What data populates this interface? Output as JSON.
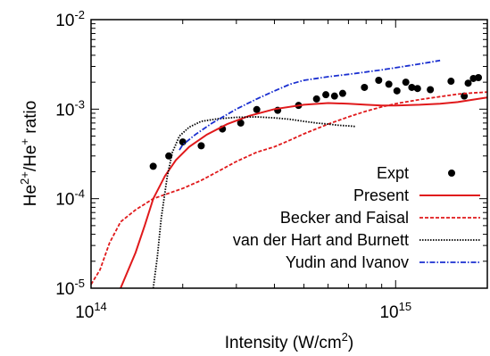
{
  "chart_data": {
    "type": "line",
    "xlabel": "Intensity (W/cm²)",
    "ylabel": "He²⁺/He⁺ ratio",
    "xscale": "log",
    "yscale": "log",
    "xlim": [
      100000000000000.0,
      2000000000000000.0
    ],
    "ylim": [
      1e-05,
      0.01
    ],
    "x_ticks": [
      {
        "value": 100000000000000.0,
        "base": "10",
        "exp": "14"
      },
      {
        "value": 1000000000000000.0,
        "base": "10",
        "exp": "15"
      }
    ],
    "y_ticks": [
      {
        "value": 1e-05,
        "base": "10",
        "exp": "-5"
      },
      {
        "value": 0.0001,
        "base": "10",
        "exp": "-4"
      },
      {
        "value": 0.001,
        "base": "10",
        "exp": "-3"
      },
      {
        "value": 0.01,
        "base": "10",
        "exp": "-2"
      }
    ],
    "legend_position": "bottom-right",
    "series": [
      {
        "name": "Expt",
        "style": "points",
        "color": "#000000",
        "x": [
          160000000000000.0,
          180000000000000.0,
          200000000000000.0,
          230000000000000.0,
          270000000000000.0,
          310000000000000.0,
          350000000000000.0,
          410000000000000.0,
          480000000000000.0,
          550000000000000.0,
          590000000000000.0,
          630000000000000.0,
          670000000000000.0,
          790000000000000.0,
          880000000000000.0,
          950000000000000.0,
          1010000000000000.0,
          1080000000000000.0,
          1130000000000000.0,
          1180000000000000.0,
          1300000000000000.0,
          1520000000000000.0,
          1680000000000000.0,
          1730000000000000.0,
          1800000000000000.0,
          1870000000000000.0
        ],
        "y": [
          0.00023,
          0.0003,
          0.00043,
          0.00039,
          0.0006,
          0.0007,
          0.00099,
          0.00097,
          0.0011,
          0.0013,
          0.00145,
          0.0014,
          0.0015,
          0.00175,
          0.0021,
          0.0019,
          0.0016,
          0.002,
          0.00175,
          0.0017,
          0.00165,
          0.00205,
          0.0014,
          0.00195,
          0.0022,
          0.00225
        ]
      },
      {
        "name": "Present",
        "style": "solid",
        "color": "#e0191b",
        "x": [
          125000000000000.0,
          140000000000000.0,
          150000000000000.0,
          160000000000000.0,
          175000000000000.0,
          190000000000000.0,
          210000000000000.0,
          240000000000000.0,
          280000000000000.0,
          330000000000000.0,
          400000000000000.0,
          500000000000000.0,
          600000000000000.0,
          700000000000000.0,
          800000000000000.0,
          900000000000000.0,
          1000000000000000.0,
          1200000000000000.0,
          1400000000000000.0,
          1600000000000000.0,
          1800000000000000.0,
          2000000000000000.0
        ],
        "y": [
          1e-05,
          2.5e-05,
          5e-05,
          0.0001,
          0.00018,
          0.00027,
          0.00038,
          0.00052,
          0.00068,
          0.00084,
          0.001,
          0.00112,
          0.00117,
          0.00115,
          0.00112,
          0.0011,
          0.0011,
          0.00112,
          0.00115,
          0.0012,
          0.00128,
          0.00135
        ]
      },
      {
        "name": "Becker and Faisal",
        "style": "dashed",
        "color": "#e0191b",
        "x": [
          100000000000000.0,
          107000000000000.0,
          115000000000000.0,
          125000000000000.0,
          140000000000000.0,
          160000000000000.0,
          180000000000000.0,
          200000000000000.0,
          230000000000000.0,
          260000000000000.0,
          300000000000000.0,
          350000000000000.0,
          400000000000000.0,
          450000000000000.0,
          500000000000000.0,
          600000000000000.0,
          700000000000000.0,
          800000000000000.0,
          900000000000000.0,
          1000000000000000.0,
          1200000000000000.0,
          1400000000000000.0,
          1600000000000000.0,
          1800000000000000.0,
          2000000000000000.0
        ],
        "y": [
          1.1e-05,
          1.6e-05,
          3.2e-05,
          5.5e-05,
          7.5e-05,
          0.0001,
          0.000115,
          0.00013,
          0.00016,
          0.0002,
          0.00026,
          0.00033,
          0.00038,
          0.00045,
          0.00053,
          0.00068,
          0.00082,
          0.00095,
          0.00106,
          0.00115,
          0.00128,
          0.00138,
          0.00147,
          0.00152,
          0.00155
        ]
      },
      {
        "name": "van der Hart and Burnett",
        "style": "dotted",
        "color": "#000000",
        "x": [
          160000000000000.0,
          165000000000000.0,
          170000000000000.0,
          178000000000000.0,
          185000000000000.0,
          195000000000000.0,
          210000000000000.0,
          230000000000000.0,
          260000000000000.0,
          300000000000000.0,
          350000000000000.0,
          400000000000000.0,
          450000000000000.0,
          500000000000000.0,
          550000000000000.0,
          600000000000000.0,
          650000000000000.0,
          700000000000000.0,
          740000000000000.0
        ],
        "y": [
          1e-05,
          2.2e-05,
          6e-05,
          0.00018,
          0.00033,
          0.0005,
          0.00063,
          0.00073,
          0.00078,
          0.00081,
          0.00082,
          0.0008,
          0.00077,
          0.00073,
          0.0007,
          0.00068,
          0.00066,
          0.00065,
          0.00064
        ]
      },
      {
        "name": "Yudin and Ivanov",
        "style": "dashdot",
        "color": "#1a2fd0",
        "x": [
          195000000000000.0,
          200000000000000.0,
          220000000000000.0,
          250000000000000.0,
          300000000000000.0,
          350000000000000.0,
          400000000000000.0,
          450000000000000.0,
          500000000000000.0,
          600000000000000.0,
          700000000000000.0,
          800000000000000.0,
          900000000000000.0,
          1000000000000000.0,
          1100000000000000.0,
          1200000000000000.0,
          1300000000000000.0,
          1400000000000000.0
        ],
        "y": [
          0.00035,
          0.0004,
          0.00052,
          0.0007,
          0.001,
          0.0013,
          0.0016,
          0.0019,
          0.0021,
          0.0023,
          0.00245,
          0.0026,
          0.00275,
          0.0029,
          0.00305,
          0.0032,
          0.00335,
          0.0035
        ]
      }
    ]
  }
}
